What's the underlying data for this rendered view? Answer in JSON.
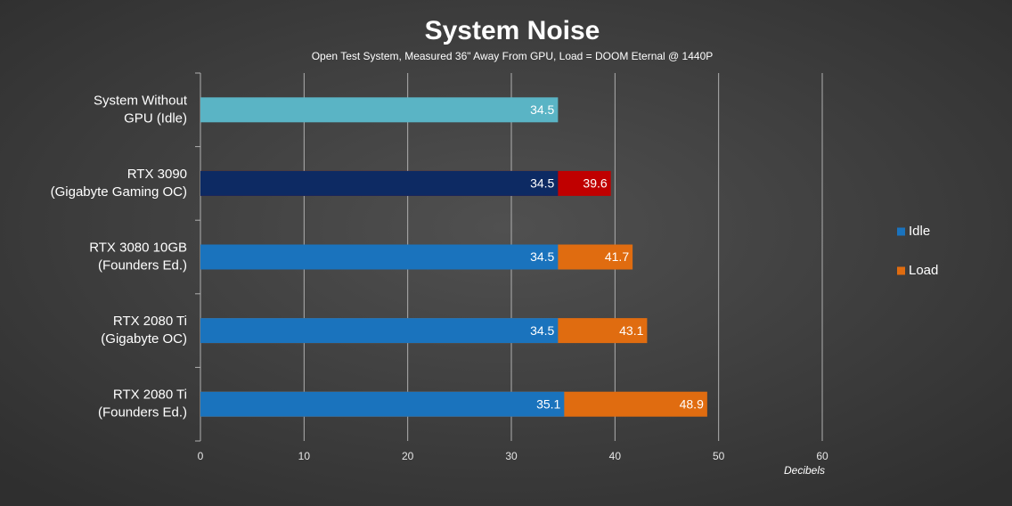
{
  "chart_data": {
    "type": "bar",
    "orientation": "horizontal",
    "title": "System Noise",
    "subtitle": "Open Test System, Measured 36\" Away From GPU, Load = DOOM Eternal @ 1440P",
    "x_label": "Decibels",
    "categories": [
      [
        "System Without",
        "GPU (Idle)"
      ],
      [
        "RTX 3090",
        "(Gigabyte Gaming OC)"
      ],
      [
        "RTX 3080 10GB",
        "(Founders Ed.)"
      ],
      [
        "RTX 2080 Ti",
        "(Gigabyte OC)"
      ],
      [
        "RTX 2080 Ti",
        "(Founders Ed.)"
      ]
    ],
    "series": [
      {
        "name": "Load",
        "color": "#e06c10",
        "colors": [
          null,
          "#c00000",
          "#e06c10",
          "#e06c10",
          "#e06c10"
        ],
        "values": [
          null,
          39.6,
          41.7,
          43.1,
          48.9
        ]
      },
      {
        "name": "Idle",
        "color": "#1a73bd",
        "colors": [
          "#5ab4c5",
          "#0d2a63",
          "#1a73bd",
          "#1a73bd",
          "#1a73bd"
        ],
        "values": [
          34.5,
          34.5,
          34.5,
          34.5,
          35.1
        ]
      }
    ],
    "legend_order": [
      1,
      0
    ],
    "legend": "right",
    "xlim": [
      0,
      60
    ],
    "xticks": [
      0,
      10,
      20,
      30,
      40,
      50,
      60
    ],
    "grid": true
  }
}
